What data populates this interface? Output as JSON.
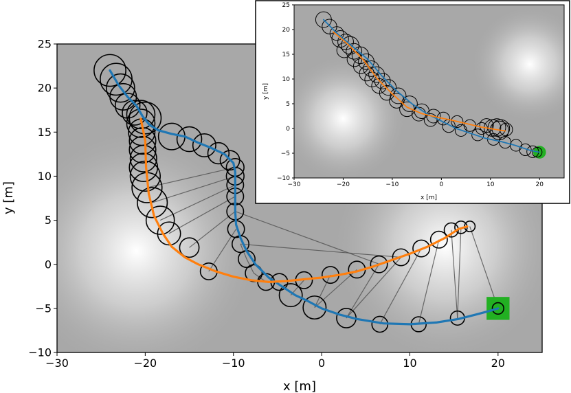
{
  "chart_data": [
    {
      "type": "line",
      "name": "main",
      "xlabel": "x [m]",
      "ylabel": "y [m]",
      "xlim": [
        -30,
        25
      ],
      "ylim": [
        -10,
        25
      ],
      "xticks": [
        -30,
        -20,
        -10,
        0,
        10,
        20
      ],
      "yticks": [
        -10,
        -5,
        0,
        5,
        10,
        15,
        20,
        25
      ],
      "grid": false,
      "colors": {
        "background": "#a8a8a8",
        "glow": "#ffffff",
        "blue": "#1f77b4",
        "orange": "#ff7f0e",
        "circle": "#000000",
        "connector": "#555555",
        "goal": "#22b022",
        "goal_edge": "#138a13"
      },
      "glows": [
        {
          "x": -21,
          "y": 1.5,
          "r": 14
        },
        {
          "x": 14,
          "y": 2,
          "r": 13
        }
      ],
      "series": [
        {
          "color": "#1f77b4",
          "points": [
            [
              -24,
              22
            ],
            [
              -23,
              20.3
            ],
            [
              -22,
              19
            ],
            [
              -21,
              18
            ],
            [
              -20.3,
              16.8
            ],
            [
              -19.5,
              15.8
            ],
            [
              -18.5,
              15.2
            ],
            [
              -17,
              14.8
            ],
            [
              -15.5,
              14.5
            ],
            [
              -14,
              13.8
            ],
            [
              -12.5,
              13.2
            ],
            [
              -11,
              12.5
            ],
            [
              -10,
              11.5
            ],
            [
              -9.8,
              10.5
            ],
            [
              -9.8,
              9
            ],
            [
              -9.8,
              7.5
            ],
            [
              -9.8,
              6
            ],
            [
              -9.7,
              4.5
            ],
            [
              -9.2,
              3
            ],
            [
              -8.5,
              1.5
            ],
            [
              -7.5,
              0
            ],
            [
              -6,
              -1.5
            ],
            [
              -4.5,
              -2.5
            ],
            [
              -3,
              -3.5
            ],
            [
              -1.5,
              -4.2
            ],
            [
              0,
              -5
            ],
            [
              2,
              -5.7
            ],
            [
              4,
              -6.2
            ],
            [
              7,
              -6.7
            ],
            [
              10,
              -6.8
            ],
            [
              13,
              -6.6
            ],
            [
              15.5,
              -6.2
            ],
            [
              17.5,
              -5.7
            ],
            [
              19,
              -5.3
            ],
            [
              20,
              -5
            ]
          ]
        },
        {
          "color": "#ff7f0e",
          "points": [
            [
              -20.5,
              16.5
            ],
            [
              -20,
              14
            ],
            [
              -19.9,
              11
            ],
            [
              -19.6,
              8
            ],
            [
              -19,
              5.5
            ],
            [
              -18,
              3.5
            ],
            [
              -17,
              2
            ],
            [
              -15.5,
              0.8
            ],
            [
              -14,
              0
            ],
            [
              -12,
              -0.8
            ],
            [
              -10,
              -1.4
            ],
            [
              -8,
              -1.8
            ],
            [
              -6,
              -2
            ],
            [
              -4,
              -1.9
            ],
            [
              -2,
              -1.7
            ],
            [
              0,
              -1.5
            ],
            [
              2,
              -1.2
            ],
            [
              4,
              -0.8
            ],
            [
              6,
              -0.2
            ],
            [
              8,
              0.5
            ],
            [
              10,
              1.2
            ],
            [
              12,
              2
            ],
            [
              14,
              3
            ],
            [
              15.5,
              4
            ],
            [
              16.5,
              4.3
            ]
          ]
        }
      ],
      "circles": [
        {
          "x": -24,
          "y": 22,
          "r": 1.8
        },
        {
          "x": -23.3,
          "y": 21,
          "r": 1.8
        },
        {
          "x": -22.8,
          "y": 20,
          "r": 1.6
        },
        {
          "x": -22.5,
          "y": 19,
          "r": 1.5
        },
        {
          "x": -22,
          "y": 18,
          "r": 1.4
        },
        {
          "x": -21.2,
          "y": 17.2,
          "r": 1.4
        },
        {
          "x": -20.5,
          "y": 17,
          "r": 1.6
        },
        {
          "x": -20,
          "y": 16.6,
          "r": 1.8
        },
        {
          "x": -20.5,
          "y": 16,
          "r": 1.6
        },
        {
          "x": -20.4,
          "y": 15,
          "r": 1.5
        },
        {
          "x": -20.3,
          "y": 14,
          "r": 1.5
        },
        {
          "x": -20.3,
          "y": 13,
          "r": 1.5
        },
        {
          "x": -20.2,
          "y": 12,
          "r": 1.5
        },
        {
          "x": -20.2,
          "y": 11,
          "r": 1.6
        },
        {
          "x": -20,
          "y": 10,
          "r": 1.7
        },
        {
          "x": -19.8,
          "y": 8.7,
          "r": 1.7
        },
        {
          "x": -19.2,
          "y": 7,
          "r": 1.7
        },
        {
          "x": -18.3,
          "y": 5,
          "r": 1.6
        },
        {
          "x": -17,
          "y": 14.5,
          "r": 1.5
        },
        {
          "x": -15,
          "y": 14.2,
          "r": 1.4
        },
        {
          "x": -13.3,
          "y": 13.5,
          "r": 1.3
        },
        {
          "x": -11.7,
          "y": 12.6,
          "r": 1.2
        },
        {
          "x": -10.4,
          "y": 11.8,
          "r": 1.1
        },
        {
          "x": -9.8,
          "y": 11,
          "r": 1.0
        },
        {
          "x": -9.8,
          "y": 10,
          "r": 1.0
        },
        {
          "x": -9.8,
          "y": 9,
          "r": 0.95
        },
        {
          "x": -9.8,
          "y": 7.7,
          "r": 0.95
        },
        {
          "x": -9.8,
          "y": 6,
          "r": 0.95
        },
        {
          "x": -9.7,
          "y": 4,
          "r": 0.95
        },
        {
          "x": -9.2,
          "y": 2.3,
          "r": 0.95
        },
        {
          "x": -17.3,
          "y": 3.5,
          "r": 1.3
        },
        {
          "x": -15,
          "y": 1.9,
          "r": 1.1
        },
        {
          "x": -12.8,
          "y": -0.8,
          "r": 0.95
        },
        {
          "x": -8.5,
          "y": 0.6,
          "r": 0.95
        },
        {
          "x": -7.7,
          "y": -1,
          "r": 0.95
        },
        {
          "x": -6.3,
          "y": -2,
          "r": 0.95
        },
        {
          "x": -4.8,
          "y": -2,
          "r": 0.95
        },
        {
          "x": -3.5,
          "y": -3.5,
          "r": 1.3
        },
        {
          "x": -2,
          "y": -1.8,
          "r": 0.95
        },
        {
          "x": 1,
          "y": -1.2,
          "r": 0.95
        },
        {
          "x": 4,
          "y": -0.6,
          "r": 0.95
        },
        {
          "x": 6.5,
          "y": 0,
          "r": 0.95
        },
        {
          "x": 9,
          "y": 0.8,
          "r": 0.95
        },
        {
          "x": 11.3,
          "y": 1.8,
          "r": 0.95
        },
        {
          "x": 13.3,
          "y": 2.8,
          "r": 0.95
        },
        {
          "x": 14.7,
          "y": 3.9,
          "r": 0.8
        },
        {
          "x": 15.8,
          "y": 4.2,
          "r": 0.7
        },
        {
          "x": 16.8,
          "y": 4.3,
          "r": 0.6
        },
        {
          "x": -0.8,
          "y": -4.9,
          "r": 1.3
        },
        {
          "x": 2.8,
          "y": -6.1,
          "r": 1.1
        },
        {
          "x": 6.6,
          "y": -6.8,
          "r": 0.9
        },
        {
          "x": 11,
          "y": -6.8,
          "r": 0.85
        },
        {
          "x": 15.4,
          "y": -6.1,
          "r": 0.8
        },
        {
          "x": 20,
          "y": -5,
          "r": 0.65
        }
      ],
      "connectors": [
        [
          [
            -19.8,
            8.7
          ],
          [
            -9.8,
            11
          ]
        ],
        [
          [
            -19.2,
            7
          ],
          [
            -9.8,
            10
          ]
        ],
        [
          [
            -18.3,
            5
          ],
          [
            -9.8,
            9
          ]
        ],
        [
          [
            -17.3,
            3.5
          ],
          [
            -9.8,
            7.7
          ]
        ],
        [
          [
            -15,
            1.9
          ],
          [
            -9.8,
            6
          ]
        ],
        [
          [
            -12.8,
            -0.8
          ],
          [
            -9.7,
            4
          ]
        ],
        [
          [
            -8.5,
            0.6
          ],
          [
            -9.2,
            2.3
          ]
        ],
        [
          [
            -7.7,
            -1
          ],
          [
            -8.5,
            0.6
          ]
        ],
        [
          [
            -6.3,
            -2
          ],
          [
            -7.7,
            -1
          ]
        ],
        [
          [
            -4.8,
            -2
          ],
          [
            -6.3,
            -2
          ]
        ],
        [
          [
            -2,
            -1.8
          ],
          [
            -3.5,
            -3.5
          ]
        ],
        [
          [
            1,
            -1.2
          ],
          [
            -0.8,
            -4.9
          ]
        ],
        [
          [
            4,
            -0.6
          ],
          [
            -0.8,
            -4.9
          ]
        ],
        [
          [
            6.5,
            0
          ],
          [
            2.8,
            -6.1
          ]
        ],
        [
          [
            9,
            0.8
          ],
          [
            2.8,
            -6.1
          ]
        ],
        [
          [
            11.3,
            1.8
          ],
          [
            6.6,
            -6.8
          ]
        ],
        [
          [
            13.3,
            2.8
          ],
          [
            11,
            -6.8
          ]
        ],
        [
          [
            14.7,
            3.9
          ],
          [
            15.4,
            -6.1
          ]
        ],
        [
          [
            15.8,
            4.2
          ],
          [
            15.4,
            -6.1
          ]
        ],
        [
          [
            16.8,
            4.3
          ],
          [
            20,
            -5
          ]
        ],
        [
          [
            -9.8,
            6
          ],
          [
            6.6,
            0
          ]
        ],
        [
          [
            -9.2,
            2.3
          ],
          [
            9,
            0.8
          ]
        ]
      ],
      "goal": {
        "x": 20,
        "y": -5,
        "half": 1.3
      }
    },
    {
      "type": "line",
      "name": "inset",
      "xlabel": "x [m]",
      "ylabel": "y [m]",
      "xlim": [
        -30,
        25
      ],
      "ylim": [
        -10,
        25
      ],
      "xticks": [
        -30,
        -20,
        -10,
        0,
        10,
        20
      ],
      "yticks": [
        -10,
        -5,
        0,
        5,
        10,
        15,
        20,
        25
      ],
      "grid": false,
      "glows": [
        {
          "x": -20,
          "y": 2,
          "r": 13
        },
        {
          "x": 18,
          "y": 13,
          "r": 12
        }
      ],
      "series": [
        {
          "color": "#1f77b4",
          "points": [
            [
              -24,
              22
            ],
            [
              -21,
              19
            ],
            [
              -18,
              16.5
            ],
            [
              -15,
              14
            ],
            [
              -12,
              10.5
            ],
            [
              -9,
              7.5
            ],
            [
              -6,
              5
            ],
            [
              -3,
              3
            ],
            [
              0,
              1.5
            ],
            [
              3,
              0
            ],
            [
              6,
              -1
            ],
            [
              9,
              -2
            ],
            [
              12,
              -2.6
            ],
            [
              15,
              -3.4
            ],
            [
              18,
              -4.4
            ],
            [
              20,
              -4.8
            ]
          ]
        },
        {
          "color": "#ff7f0e",
          "points": [
            [
              -22,
              19.5
            ],
            [
              -19,
              17
            ],
            [
              -16,
              14
            ],
            [
              -13,
              10
            ],
            [
              -10,
              7
            ],
            [
              -7,
              4.3
            ],
            [
              -4,
              3
            ],
            [
              -1,
              2.3
            ],
            [
              2,
              1.7
            ],
            [
              5,
              1
            ],
            [
              8,
              0.3
            ],
            [
              11,
              -0.2
            ],
            [
              13,
              -0.5
            ]
          ]
        }
      ],
      "circles": [
        {
          "x": -24,
          "y": 22,
          "r": 1.6
        },
        {
          "x": -22.8,
          "y": 20.6,
          "r": 1.5
        },
        {
          "x": -21.3,
          "y": 19.2,
          "r": 1.4
        },
        {
          "x": -20.6,
          "y": 18.1,
          "r": 1.7
        },
        {
          "x": -19.5,
          "y": 17.5,
          "r": 1.6
        },
        {
          "x": -18.6,
          "y": 16.8,
          "r": 1.8
        },
        {
          "x": -19.8,
          "y": 15.8,
          "r": 1.5
        },
        {
          "x": -17.8,
          "y": 15.6,
          "r": 1.6
        },
        {
          "x": -16.5,
          "y": 14.8,
          "r": 1.7
        },
        {
          "x": -17.7,
          "y": 14,
          "r": 1.5
        },
        {
          "x": -15.3,
          "y": 13.5,
          "r": 1.6
        },
        {
          "x": -16.4,
          "y": 12.6,
          "r": 1.5
        },
        {
          "x": -14.3,
          "y": 12.1,
          "r": 1.6
        },
        {
          "x": -15.2,
          "y": 11.1,
          "r": 1.5
        },
        {
          "x": -13.2,
          "y": 10.9,
          "r": 1.6
        },
        {
          "x": -14.1,
          "y": 9.9,
          "r": 1.5
        },
        {
          "x": -12,
          "y": 9.6,
          "r": 1.6
        },
        {
          "x": -12.7,
          "y": 8.6,
          "r": 1.5
        },
        {
          "x": -10.8,
          "y": 8.3,
          "r": 1.6
        },
        {
          "x": -11.1,
          "y": 7.2,
          "r": 1.5
        },
        {
          "x": -8.8,
          "y": 6.6,
          "r": 1.6
        },
        {
          "x": -9.1,
          "y": 5.6,
          "r": 1.5
        },
        {
          "x": -6.5,
          "y": 5,
          "r": 1.6
        },
        {
          "x": -7,
          "y": 3.9,
          "r": 1.5
        },
        {
          "x": -4,
          "y": 3.5,
          "r": 1.5
        },
        {
          "x": -4.6,
          "y": 2.9,
          "r": 1.4
        },
        {
          "x": -1.6,
          "y": 2.5,
          "r": 1.4
        },
        {
          "x": -2.2,
          "y": 1.7,
          "r": 1.3
        },
        {
          "x": 0.4,
          "y": 2,
          "r": 1.3
        },
        {
          "x": 1.5,
          "y": 0.5,
          "r": 1.3
        },
        {
          "x": 3.2,
          "y": 1.4,
          "r": 1.2
        },
        {
          "x": 4,
          "y": -0.4,
          "r": 1.2
        },
        {
          "x": 5.8,
          "y": 0.6,
          "r": 1.2
        },
        {
          "x": 7.4,
          "y": -1.3,
          "r": 1.2
        },
        {
          "x": 8.2,
          "y": 0,
          "r": 1.2
        },
        {
          "x": 9.2,
          "y": 0.6,
          "r": 1.4
        },
        {
          "x": 10.4,
          "y": 0.1,
          "r": 1.7
        },
        {
          "x": 11.3,
          "y": 0.2,
          "r": 1.8
        },
        {
          "x": 11.8,
          "y": -0.4,
          "r": 1.9
        },
        {
          "x": 12.1,
          "y": 0,
          "r": 1.8
        },
        {
          "x": 13.2,
          "y": -0.2,
          "r": 1.3
        },
        {
          "x": 10.6,
          "y": -2.2,
          "r": 1.2
        },
        {
          "x": 13,
          "y": -2.8,
          "r": 1.2
        },
        {
          "x": 15.2,
          "y": -3.4,
          "r": 1.2
        },
        {
          "x": 17.1,
          "y": -4.3,
          "r": 1.2
        },
        {
          "x": 18.6,
          "y": -4.7,
          "r": 1.2
        },
        {
          "x": 19.5,
          "y": -4.8,
          "r": 1.0
        }
      ],
      "goal": {
        "x": 20,
        "y": -4.8,
        "r": 1.3
      }
    }
  ]
}
